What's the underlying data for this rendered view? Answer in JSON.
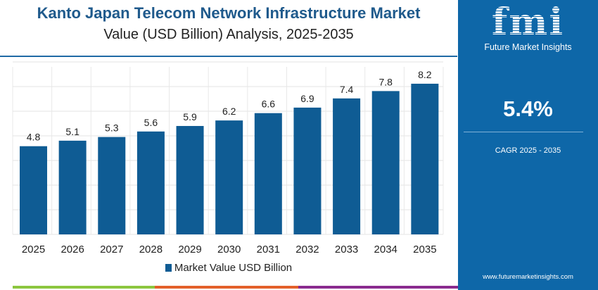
{
  "title": "Kanto Japan Telecom Network Infrastructure Market",
  "subtitle": "Value (USD Billion) Analysis, 2025-2035",
  "side": {
    "logo_text": "fmi",
    "brand": "Future Market Insights",
    "cagr_value": "5.4%",
    "cagr_label": "CAGR 2025 - 2035",
    "url": "www.futuremarketinsights.com"
  },
  "colors": {
    "bar": "#0f5c94",
    "panel": "#0e67a8",
    "title": "#1f5a8c"
  },
  "chart_data": {
    "type": "bar",
    "categories": [
      "2025",
      "2026",
      "2027",
      "2028",
      "2029",
      "2030",
      "2031",
      "2032",
      "2033",
      "2034",
      "2035"
    ],
    "series": [
      {
        "name": "Market Value USD Billion",
        "values": [
          4.8,
          5.1,
          5.3,
          5.6,
          5.9,
          6.2,
          6.6,
          6.9,
          7.4,
          7.8,
          8.2
        ]
      }
    ],
    "ylim": [
      0,
      9.5
    ],
    "grid": true,
    "legend": "bottom",
    "data_labels": [
      "4.8",
      "5.1",
      "5.3",
      "5.6",
      "5.9",
      "6.2",
      "6.6",
      "6.9",
      "7.4",
      "7.8",
      "8.2"
    ]
  }
}
